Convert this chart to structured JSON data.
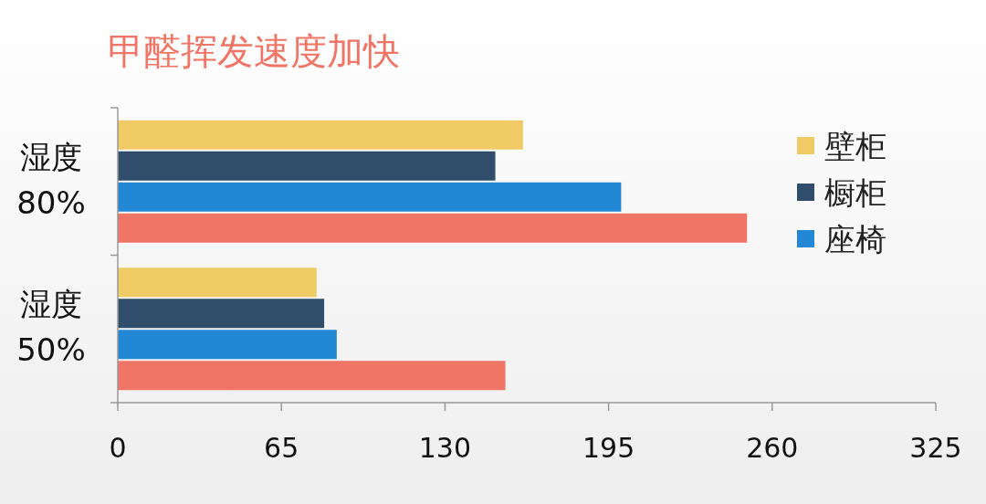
{
  "chart_data": {
    "type": "bar",
    "orientation": "horizontal",
    "title": "甲醛挥发速度加快",
    "categories": [
      "湿度\n80%",
      "湿度\n50%"
    ],
    "series": [
      {
        "name": "壁柜",
        "color": "#f0ca65",
        "values": [
          161,
          79
        ]
      },
      {
        "name": "橱柜",
        "color": "#304d6b",
        "values": [
          150,
          82
        ]
      },
      {
        "name": "座椅",
        "color": "#2288d6",
        "values": [
          200,
          87
        ]
      },
      {
        "color": "#f07566",
        "values": [
          250,
          154
        ]
      }
    ],
    "xlim": [
      0,
      325
    ],
    "xticks": [
      0,
      65,
      130,
      195,
      260,
      325
    ],
    "legend": "right"
  }
}
